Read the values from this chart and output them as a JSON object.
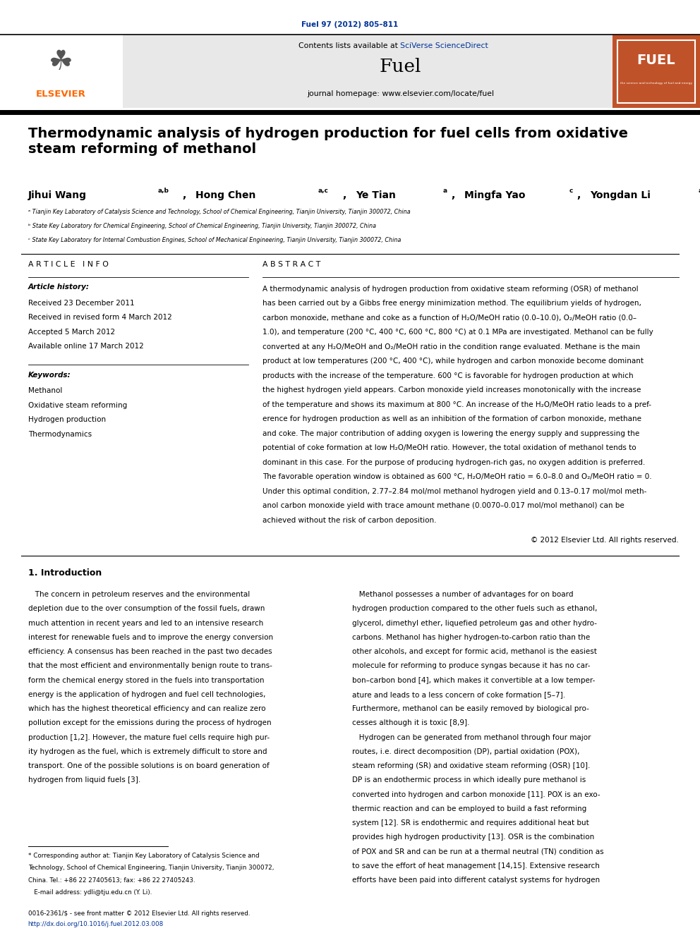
{
  "page_width": 9.92,
  "page_height": 13.23,
  "background_color": "#ffffff",
  "top_journal_ref": "Fuel 97 (2012) 805–811",
  "top_journal_ref_color": "#003399",
  "header_bg_color": "#e8e8e8",
  "elsevier_text_color": "#FF6600",
  "journal_name": "Fuel",
  "journal_homepage": "journal homepage: www.elsevier.com/locate/fuel",
  "contents_text": "Contents lists available at ",
  "sciverse_text": "SciVerse ScienceDirect",
  "sciverse_color": "#003399",
  "fuel_cover_color": "#C0522A",
  "paper_title": "Thermodynamic analysis of hydrogen production for fuel cells from oxidative\nsteam reforming of methanol",
  "affil_a": "ᵃ Tianjin Key Laboratory of Catalysis Science and Technology, School of Chemical Engineering, Tianjin University, Tianjin 300072, China",
  "affil_b": "ᵇ State Key Laboratory for Chemical Engineering, School of Chemical Engineering, Tianjin University, Tianjin 300072, China",
  "affil_c": "ᶜ State Key Laboratory for Internal Combustion Engines, School of Mechanical Engineering, Tianjin University, Tianjin 300072, China",
  "article_info_header": "A R T I C L E   I N F O",
  "article_history_label": "Article history:",
  "article_history": "Received 23 December 2011\nReceived in revised form 4 March 2012\nAccepted 5 March 2012\nAvailable online 17 March 2012",
  "keywords_label": "Keywords:",
  "keywords": "Methanol\nOxidative steam reforming\nHydrogen production\nThermodynamics",
  "abstract_header": "A B S T R A C T",
  "abstract_text": "A thermodynamic analysis of hydrogen production from oxidative steam reforming (OSR) of methanol\nhas been carried out by a Gibbs free energy minimization method. The equilibrium yields of hydrogen,\ncarbon monoxide, methane and coke as a function of H₂O/MeOH ratio (0.0–10.0), O₂/MeOH ratio (0.0–\n1.0), and temperature (200 °C, 400 °C, 600 °C, 800 °C) at 0.1 MPa are investigated. Methanol can be fully\nconverted at any H₂O/MeOH and O₂/MeOH ratio in the condition range evaluated. Methane is the main\nproduct at low temperatures (200 °C, 400 °C), while hydrogen and carbon monoxide become dominant\nproducts with the increase of the temperature. 600 °C is favorable for hydrogen production at which\nthe highest hydrogen yield appears. Carbon monoxide yield increases monotonically with the increase\nof the temperature and shows its maximum at 800 °C. An increase of the H₂O/MeOH ratio leads to a pref-\nerence for hydrogen production as well as an inhibition of the formation of carbon monoxide, methane\nand coke. The major contribution of adding oxygen is lowering the energy supply and suppressing the\npotential of coke formation at low H₂O/MeOH ratio. However, the total oxidation of methanol tends to\ndominant in this case. For the purpose of producing hydrogen-rich gas, no oxygen addition is preferred.\nThe favorable operation window is obtained as 600 °C, H₂O/MeOH ratio = 6.0–8.0 and O₂/MeOH ratio = 0.\nUnder this optimal condition, 2.77–2.84 mol/mol methanol hydrogen yield and 0.13–0.17 mol/mol meth-\nanol carbon monoxide yield with trace amount methane (0.0070–0.017 mol/mol methanol) can be\nachieved without the risk of carbon deposition.",
  "copyright_text": "© 2012 Elsevier Ltd. All rights reserved.",
  "intro_header": "1. Introduction",
  "intro_left": "   The concern in petroleum reserves and the environmental\ndepletion due to the over consumption of the fossil fuels, drawn\nmuch attention in recent years and led to an intensive research\ninterest for renewable fuels and to improve the energy conversion\nefficiency. A consensus has been reached in the past two decades\nthat the most efficient and environmentally benign route to trans-\nform the chemical energy stored in the fuels into transportation\nenergy is the application of hydrogen and fuel cell technologies,\nwhich has the highest theoretical efficiency and can realize zero\npollution except for the emissions during the process of hydrogen\nproduction [1,2]. However, the mature fuel cells require high pur-\nity hydrogen as the fuel, which is extremely difficult to store and\ntransport. One of the possible solutions is on board generation of\nhydrogen from liquid fuels [3].",
  "intro_right": "   Methanol possesses a number of advantages for on board\nhydrogen production compared to the other fuels such as ethanol,\nglycerol, dimethyl ether, liquefied petroleum gas and other hydro-\ncarbons. Methanol has higher hydrogen-to-carbon ratio than the\nother alcohols, and except for formic acid, methanol is the easiest\nmolecule for reforming to produce syngas because it has no car-\nbon–carbon bond [4], which makes it convertible at a low temper-\nature and leads to a less concern of coke formation [5–7].\nFurthermore, methanol can be easily removed by biological pro-\ncesses although it is toxic [8,9].\n   Hydrogen can be generated from methanol through four major\nroutes, i.e. direct decomposition (DP), partial oxidation (POX),\nsteam reforming (SR) and oxidative steam reforming (OSR) [10].\nDP is an endothermic process in which ideally pure methanol is\nconverted into hydrogen and carbon monoxide [11]. POX is an exo-\nthermic reaction and can be employed to build a fast reforming\nsystem [12]. SR is endothermic and requires additional heat but\nprovides high hydrogen productivity [13]. OSR is the combination\nof POX and SR and can be run at a thermal neutral (TN) condition as\nto save the effort of heat management [14,15]. Extensive research\nefforts have been paid into different catalyst systems for hydrogen",
  "footnote_text": "* Corresponding author at: Tianjin Key Laboratory of Catalysis Science and\nTechnology, School of Chemical Engineering, Tianjin University, Tianjin 300072,\nChina. Tel.: +86 22 27405613; fax: +86 22 27405243.\n   E-mail address: ydli@tju.edu.cn (Y. Li).",
  "footer_line1": "0016-2361/$ - see front matter © 2012 Elsevier Ltd. All rights reserved.",
  "footer_line2": "http://dx.doi.org/10.1016/j.fuel.2012.03.008"
}
